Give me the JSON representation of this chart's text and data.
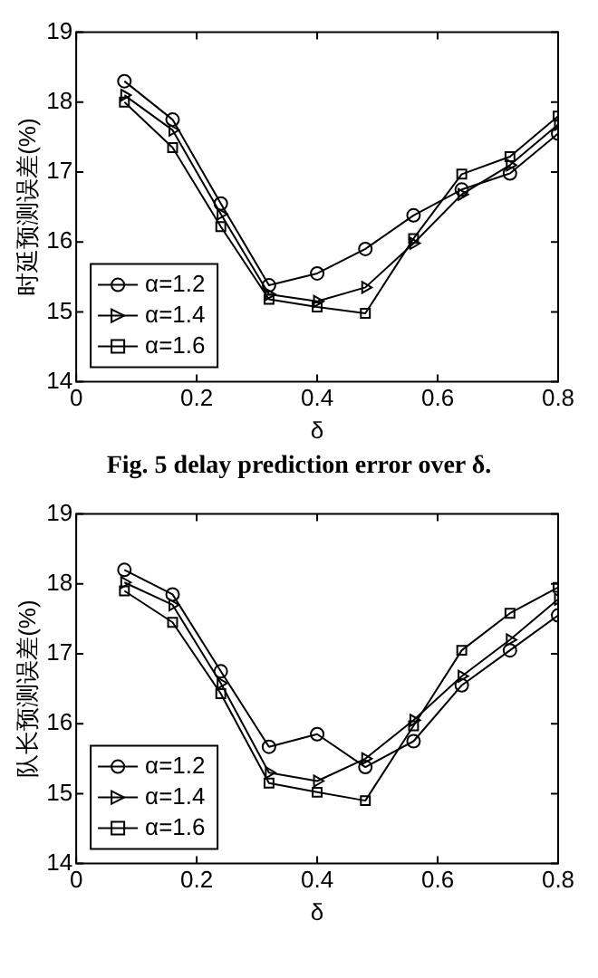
{
  "chart_data": [
    {
      "type": "line",
      "xlabel": "δ",
      "ylabel": "时延预测误差(%)",
      "annotations": [
        "Fig. 5 delay prediction error over δ."
      ],
      "x": [
        0.08,
        0.16,
        0.24,
        0.32,
        0.4,
        0.48,
        0.56,
        0.64,
        0.72,
        0.8
      ],
      "series": [
        {
          "name": "α=1.2",
          "color": "#000000",
          "marker": "circle",
          "values": [
            18.3,
            17.75,
            16.55,
            15.38,
            15.55,
            15.9,
            16.38,
            16.75,
            16.98,
            17.55
          ]
        },
        {
          "name": "α=1.4",
          "color": "#000000",
          "marker": "triangle",
          "values": [
            18.1,
            17.6,
            16.4,
            15.25,
            15.15,
            15.35,
            15.98,
            16.68,
            17.1,
            17.68
          ]
        },
        {
          "name": "α=1.6",
          "color": "#000000",
          "marker": "square",
          "values": [
            18.0,
            17.35,
            16.22,
            15.18,
            15.07,
            14.98,
            16.05,
            16.97,
            17.22,
            17.8
          ]
        }
      ],
      "xlim": [
        0,
        0.8
      ],
      "xticks": [
        0,
        0.2,
        0.4,
        0.6,
        0.8
      ],
      "ylim": [
        14,
        19
      ],
      "yticks": [
        14,
        15,
        16,
        17,
        18,
        19
      ],
      "legend": "bottom left"
    },
    {
      "type": "line",
      "xlabel": "δ",
      "ylabel": "队长预测误差(%)",
      "x": [
        0.08,
        0.16,
        0.24,
        0.32,
        0.4,
        0.48,
        0.56,
        0.64,
        0.72,
        0.8
      ],
      "series": [
        {
          "name": "α=1.2",
          "color": "#000000",
          "marker": "circle",
          "values": [
            18.2,
            17.85,
            16.75,
            15.67,
            15.85,
            15.38,
            15.75,
            16.55,
            17.05,
            17.55
          ]
        },
        {
          "name": "α=1.4",
          "color": "#000000",
          "marker": "triangle",
          "values": [
            18.02,
            17.7,
            16.58,
            15.3,
            15.18,
            15.5,
            16.05,
            16.68,
            17.2,
            17.78
          ]
        },
        {
          "name": "α=1.6",
          "color": "#000000",
          "marker": "square",
          "values": [
            17.9,
            17.45,
            16.43,
            15.15,
            15.02,
            14.9,
            15.97,
            17.05,
            17.58,
            17.95
          ]
        }
      ],
      "xlim": [
        0,
        0.8
      ],
      "xticks": [
        0,
        0.2,
        0.4,
        0.6,
        0.8
      ],
      "ylim": [
        14,
        19
      ],
      "yticks": [
        14,
        15,
        16,
        17,
        18,
        19
      ],
      "legend": "bottom left"
    }
  ]
}
